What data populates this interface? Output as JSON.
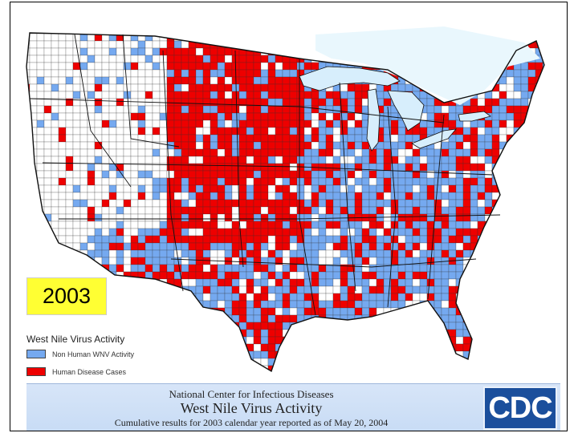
{
  "year_label": "2003",
  "legend": {
    "title": "West Nile Virus Activity",
    "items": [
      {
        "label": "Non Human WNV Activity",
        "color": "#75a9f0"
      },
      {
        "label": "Human Disease Cases",
        "color": "#ee0000"
      }
    ]
  },
  "banner": {
    "line1": "National Center for Infectious Diseases",
    "line2": "West Nile Virus Activity",
    "line3": "Cumulative results for 2003 calendar year reported as of May 20, 2004"
  },
  "logo": {
    "text": "CDC"
  },
  "colors": {
    "human": "#ee0000",
    "non_human": "#75a9f0",
    "none": "#ffffff",
    "lake": "#d7eefc",
    "border": "#111111"
  }
}
